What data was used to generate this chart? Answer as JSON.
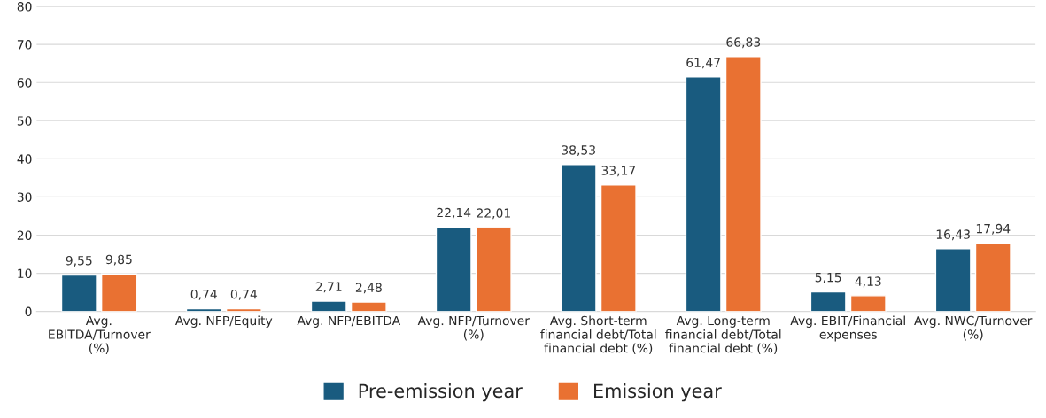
{
  "chart_data": {
    "type": "bar",
    "categories": [
      "Avg.\nEBITDA/Turnover\n(%)",
      "Avg. NFP/Equity",
      "Avg. NFP/EBITDA",
      "Avg. NFP/Turnover\n(%)",
      "Avg. Short-term\nfinancial debt/Total\nfinancial debt (%)",
      "Avg. Long-term\nfinancial debt/Total\nfinancial debt (%)",
      "Avg. EBIT/Financial\nexpenses",
      "Avg. NWC/Turnover\n(%)"
    ],
    "series": [
      {
        "name": "Pre-emission year",
        "color": "#195b7f",
        "values": [
          9.55,
          0.74,
          2.71,
          22.14,
          38.53,
          61.47,
          5.15,
          16.43
        ],
        "value_labels": [
          "9,55",
          "0,74",
          "2,71",
          "22,14",
          "38,53",
          "61,47",
          "5,15",
          "16,43"
        ]
      },
      {
        "name": "Emission year",
        "color": "#e97132",
        "values": [
          9.85,
          0.74,
          2.48,
          22.01,
          33.17,
          66.83,
          4.13,
          17.94
        ],
        "value_labels": [
          "9,85",
          "0,74",
          "2,48",
          "22,01",
          "33,17",
          "66,83",
          "4,13",
          "17,94"
        ]
      }
    ],
    "ylim": [
      0,
      80
    ],
    "yticks": [
      0,
      10,
      20,
      30,
      40,
      50,
      60,
      70,
      80
    ],
    "grid": "y",
    "legend": "bottom"
  }
}
